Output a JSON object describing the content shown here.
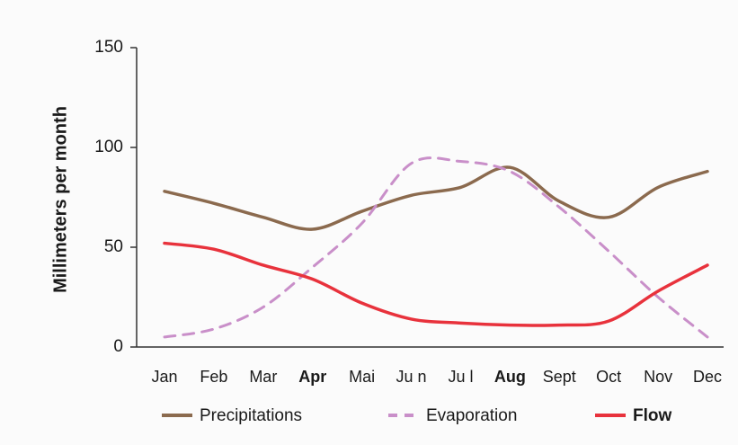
{
  "chart_data": {
    "type": "line",
    "y_label": "Millimeters per month",
    "categories": [
      "Jan",
      "Feb",
      "Mar",
      "Apr",
      "Mai",
      "Ju n",
      "Ju l",
      "Aug",
      "Sept",
      "Oct",
      "Nov",
      "Dec"
    ],
    "series": [
      {
        "name": "Precipitations",
        "color": "#8b6a4e",
        "values": [
          78,
          72,
          65,
          59,
          68,
          76,
          80,
          90,
          73,
          65,
          80,
          88
        ]
      },
      {
        "name": "Evaporation",
        "color": "#c98fc9",
        "dashed": true,
        "values": [
          5,
          9,
          20,
          40,
          62,
          92,
          93,
          88,
          70,
          48,
          25,
          5
        ]
      },
      {
        "name": "Flow",
        "color": "#e8323c",
        "values": [
          52,
          49,
          41,
          34,
          22,
          14,
          12,
          11,
          11,
          13,
          28,
          41
        ]
      }
    ],
    "ylim": [
      0,
      150
    ],
    "yticks": [
      0,
      50,
      100,
      150
    ]
  }
}
